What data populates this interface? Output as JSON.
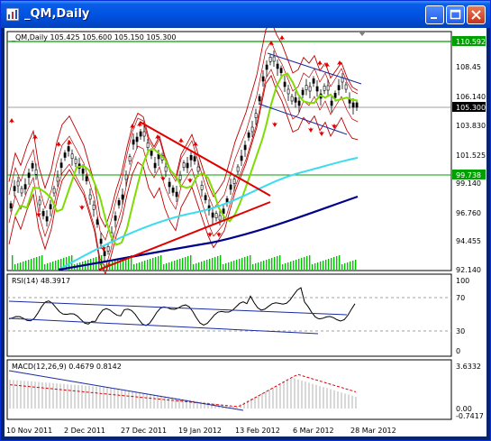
{
  "window": {
    "title": "_QM,Daily"
  },
  "main_chart": {
    "header": "_QM,Daily  105.425 105.600 105.150 105.300",
    "price_labels": [
      "108.45",
      "106.140",
      "103.830",
      "101.525",
      "99.140",
      "96.760",
      "94.455",
      "92.140"
    ],
    "current_price": "105.300",
    "hline_top": "110.592",
    "hline_mid": "99.738"
  },
  "rsi": {
    "header": "RSI(14) 48.3917",
    "levels": [
      "100",
      "70",
      "30",
      "0"
    ]
  },
  "macd": {
    "header": "MACD(12,26,9) 0.4679 0.8142",
    "levels": [
      "3.6332",
      "0.00",
      "-0.7417"
    ]
  },
  "x_axis": {
    "labels": [
      "10 Nov 2011",
      "2 Dec 2011",
      "27 Dec 2011",
      "19 Jan 2012",
      "13 Feb 2012",
      "6 Mar 2012",
      "28 Mar 2012"
    ]
  },
  "colors": {
    "grid_green": "#00a000",
    "ma_lime": "#7fdc00",
    "ma_cyan": "#3cdcf0",
    "ma_navy": "#00008b",
    "bands": "#c00000",
    "trend_red": "#e00000",
    "trend_blue": "#1a2aa0"
  }
}
